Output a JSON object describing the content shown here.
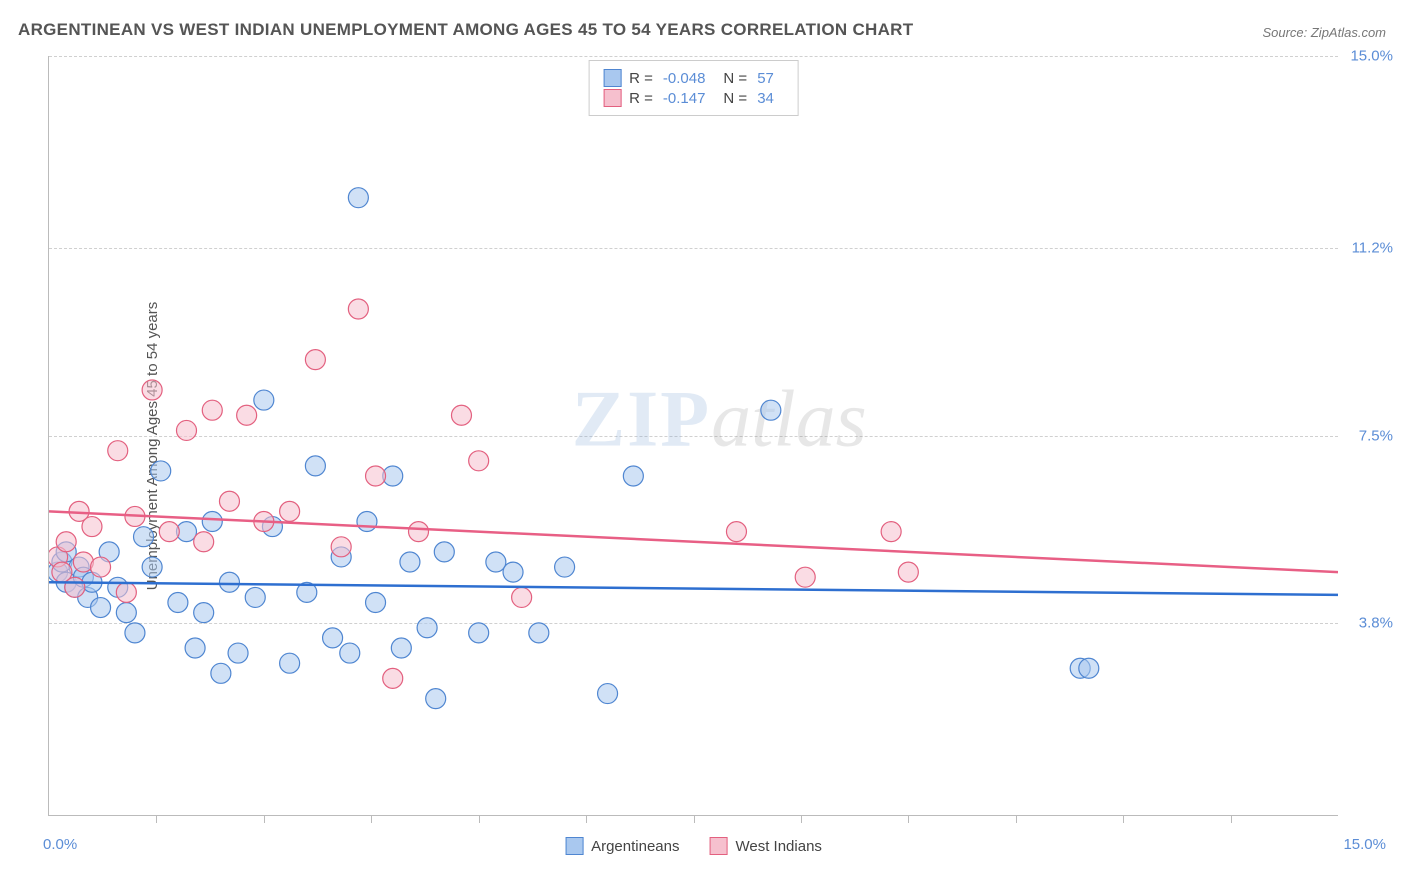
{
  "title": "ARGENTINEAN VS WEST INDIAN UNEMPLOYMENT AMONG AGES 45 TO 54 YEARS CORRELATION CHART",
  "source": "Source: ZipAtlas.com",
  "ylabel": "Unemployment Among Ages 45 to 54 years",
  "watermark": {
    "zip": "ZIP",
    "atlas": "atlas"
  },
  "chart": {
    "type": "scatter",
    "background_color": "#ffffff",
    "grid_color": "#d0d0d0",
    "axis_color": "#bbbbbb",
    "label_color": "#5b8dd6",
    "text_color": "#555555",
    "xlim": [
      0,
      15
    ],
    "ylim": [
      0,
      15
    ],
    "yticks": [
      {
        "val": 3.8,
        "label": "3.8%"
      },
      {
        "val": 7.5,
        "label": "7.5%"
      },
      {
        "val": 11.2,
        "label": "11.2%"
      },
      {
        "val": 15.0,
        "label": "15.0%"
      }
    ],
    "xticks_major": [
      1.25,
      2.5,
      3.75,
      5.0,
      6.25,
      7.5,
      8.75,
      10.0,
      11.25,
      12.5,
      13.75
    ],
    "xaxis_left_label": "0.0%",
    "xaxis_right_label": "15.0%",
    "marker_radius": 10,
    "marker_opacity": 0.55,
    "marker_stroke_width": 1.2,
    "line_width": 2.5,
    "series": [
      {
        "name": "Argentineans",
        "fill": "#a9c8ef",
        "stroke": "#4f86d1",
        "line_color": "#2e6fd0",
        "R": "-0.048",
        "N": "57",
        "trend": {
          "y_at_x0": 4.6,
          "y_at_xmax": 4.35
        },
        "points": [
          [
            0.1,
            4.8
          ],
          [
            0.15,
            5.0
          ],
          [
            0.2,
            4.6
          ],
          [
            0.2,
            5.2
          ],
          [
            0.3,
            4.5
          ],
          [
            0.35,
            4.9
          ],
          [
            0.4,
            4.7
          ],
          [
            0.45,
            4.3
          ],
          [
            0.5,
            4.6
          ],
          [
            0.6,
            4.1
          ],
          [
            0.7,
            5.2
          ],
          [
            0.8,
            4.5
          ],
          [
            0.9,
            4.0
          ],
          [
            1.0,
            3.6
          ],
          [
            1.1,
            5.5
          ],
          [
            1.2,
            4.9
          ],
          [
            1.3,
            6.8
          ],
          [
            1.5,
            4.2
          ],
          [
            1.6,
            5.6
          ],
          [
            1.7,
            3.3
          ],
          [
            1.8,
            4.0
          ],
          [
            1.9,
            5.8
          ],
          [
            2.0,
            2.8
          ],
          [
            2.1,
            4.6
          ],
          [
            2.2,
            3.2
          ],
          [
            2.4,
            4.3
          ],
          [
            2.5,
            8.2
          ],
          [
            2.6,
            5.7
          ],
          [
            2.8,
            3.0
          ],
          [
            3.0,
            4.4
          ],
          [
            3.1,
            6.9
          ],
          [
            3.3,
            3.5
          ],
          [
            3.4,
            5.1
          ],
          [
            3.5,
            3.2
          ],
          [
            3.6,
            12.2
          ],
          [
            3.7,
            5.8
          ],
          [
            3.8,
            4.2
          ],
          [
            4.0,
            6.7
          ],
          [
            4.1,
            3.3
          ],
          [
            4.2,
            5.0
          ],
          [
            4.4,
            3.7
          ],
          [
            4.5,
            2.3
          ],
          [
            4.6,
            5.2
          ],
          [
            5.0,
            3.6
          ],
          [
            5.2,
            5.0
          ],
          [
            5.4,
            4.8
          ],
          [
            5.7,
            3.6
          ],
          [
            6.0,
            4.9
          ],
          [
            6.5,
            2.4
          ],
          [
            6.8,
            6.7
          ],
          [
            8.4,
            8.0
          ],
          [
            12.0,
            2.9
          ],
          [
            12.1,
            2.9
          ]
        ]
      },
      {
        "name": "West Indians",
        "fill": "#f6c0ce",
        "stroke": "#e3607f",
        "line_color": "#e85f85",
        "R": "-0.147",
        "N": "34",
        "trend": {
          "y_at_x0": 6.0,
          "y_at_xmax": 4.8
        },
        "points": [
          [
            0.1,
            5.1
          ],
          [
            0.15,
            4.8
          ],
          [
            0.2,
            5.4
          ],
          [
            0.3,
            4.5
          ],
          [
            0.35,
            6.0
          ],
          [
            0.4,
            5.0
          ],
          [
            0.5,
            5.7
          ],
          [
            0.6,
            4.9
          ],
          [
            0.8,
            7.2
          ],
          [
            0.9,
            4.4
          ],
          [
            1.0,
            5.9
          ],
          [
            1.2,
            8.4
          ],
          [
            1.4,
            5.6
          ],
          [
            1.6,
            7.6
          ],
          [
            1.8,
            5.4
          ],
          [
            1.9,
            8.0
          ],
          [
            2.1,
            6.2
          ],
          [
            2.3,
            7.9
          ],
          [
            2.5,
            5.8
          ],
          [
            2.8,
            6.0
          ],
          [
            3.1,
            9.0
          ],
          [
            3.4,
            5.3
          ],
          [
            3.6,
            10.0
          ],
          [
            3.8,
            6.7
          ],
          [
            4.0,
            2.7
          ],
          [
            4.3,
            5.6
          ],
          [
            4.8,
            7.9
          ],
          [
            5.0,
            7.0
          ],
          [
            5.5,
            4.3
          ],
          [
            8.0,
            5.6
          ],
          [
            8.8,
            4.7
          ],
          [
            9.8,
            5.6
          ],
          [
            10.0,
            4.8
          ]
        ]
      }
    ],
    "legend_top": {
      "R_label": "R =",
      "N_label": "N ="
    },
    "legend_bottom": true
  }
}
